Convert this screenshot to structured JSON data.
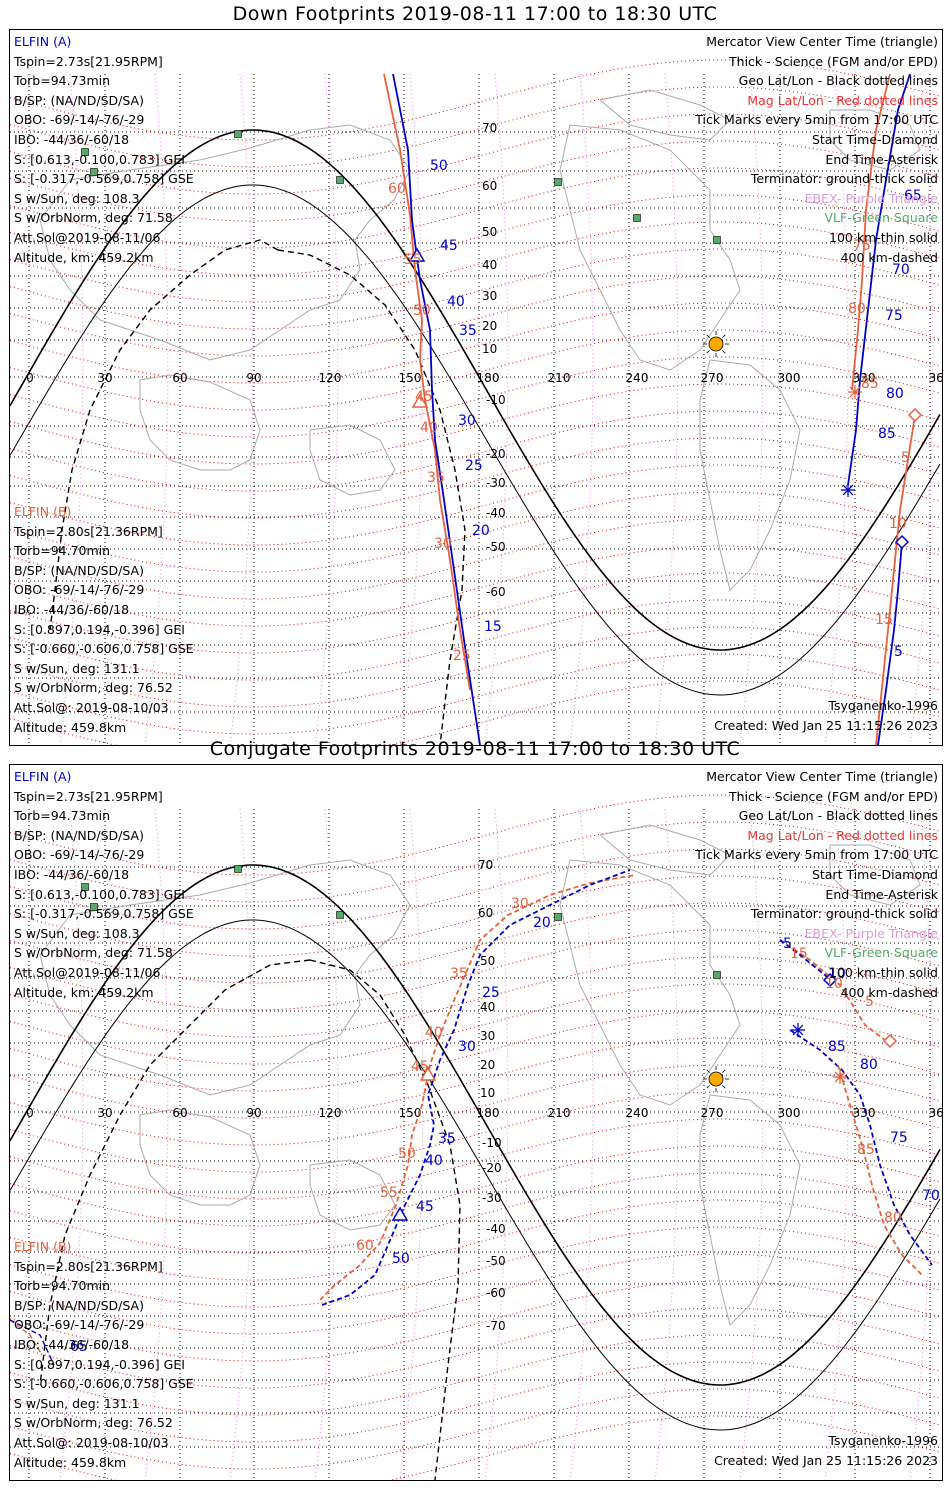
{
  "colors": {
    "elfin_a": "#0000cc",
    "elfin_b": "#e8603c",
    "mag_grid": "#dd0000",
    "ebex": "#dd88dd",
    "vlf": "#55aa66",
    "sun": "#ffaa00"
  },
  "panels": [
    {
      "id": "down",
      "title": "Down Footprints 2019-08-11 17:00 to 18:30 UTC",
      "elfin_a": {
        "name": "ELFIN (A)",
        "lines": [
          "Tspin=2.73s[21.95RPM]",
          "Torb=94.73min",
          "B/SP: (NA/ND/SD/SA)",
          "OBO: -69/-14/-76/-29",
          "IBO: -44/36/-60/18",
          "S: [0.613,-0.100,0.783] GEI",
          "S: [-0.317,-0.569,0.758] GSE",
          "S w/Sun, deg: 108.3",
          "S w/OrbNorm, deg: 71.58",
          "Att.Sol@2019-08-11/06",
          "Altitude, km: 459.2km"
        ]
      },
      "elfin_b": {
        "name": "ELFIN (B)",
        "lines": [
          "Tspin=2.80s[21.36RPM]",
          "Torb=94.70min",
          "B/SP: (NA/ND/SD/SA)",
          "OBO: -69/-14/-76/-29",
          "IBO: -44/36/-60/18",
          "S: [0.897,0.194,-0.396] GEI",
          "S: [-0.660,-0.606,0.758] GSE",
          "S w/Sun, deg: 131.1",
          "S w/OrbNorm, deg: 76.52",
          "Att.Sol@: 2019-08-10/03",
          "Altitude: 459.8km"
        ]
      },
      "legend": [
        "Mercator View Center Time (triangle)",
        "Thick - Science (FGM and/or EPD)",
        "Geo Lat/Lon - Black dotted lines",
        "Mag Lat/Lon - Red dotted lines",
        "Tick Marks every 5min from 17:00 UTC",
        "Start Time-Diamond",
        "End Time-Asterisk",
        "Terminator: ground-thick solid",
        "EBEX- Purple Triangle",
        "VLF-Green Square",
        "100 km-thin solid",
        "400 km-dashed"
      ],
      "model": "Tsyganenko-1996",
      "created": "Created: Wed Jan 25 11:15:26 2023",
      "lon_ticks": [
        "0",
        "30",
        "60",
        "90",
        "120",
        "150",
        "180",
        "210",
        "240",
        "270",
        "300",
        "330",
        "360"
      ],
      "lat_ticks": [
        "70",
        "60",
        "50",
        "40",
        "30",
        "20",
        "10",
        "-10",
        "-20",
        "-30",
        "-40",
        "-50",
        "-60"
      ],
      "track_labels": {
        "a": [
          "50",
          "45",
          "40",
          "35",
          "30",
          "25",
          "20",
          "15",
          "60",
          "65",
          "70",
          "75",
          "80",
          "85",
          "5"
        ],
        "b": [
          "60",
          "55",
          "50",
          "45",
          "40",
          "35",
          "30",
          "25",
          "75",
          "80",
          "85",
          "5",
          "10",
          "15"
        ]
      }
    },
    {
      "id": "conj",
      "title": "Conjugate Footprints 2019-08-11 17:00 to 18:30 UTC",
      "elfin_a": {
        "name": "ELFIN (A)",
        "lines": [
          "Tspin=2.73s[21.95RPM]",
          "Torb=94.73min",
          "B/SP: (NA/ND/SD/SA)",
          "OBO: -69/-14/-76/-29",
          "IBO: -44/36/-60/18",
          "S: [0.613,-0.100,0.783] GEI",
          "S: [-0.317,-0.569,0.758] GSE",
          "S w/Sun, deg: 108.3",
          "S w/OrbNorm, deg: 71.58",
          "Att.Sol@2019-08-11/06",
          "Altitude, km: 459.2km"
        ]
      },
      "elfin_b": {
        "name": "ELFIN (B)",
        "lines": [
          "Tspin=2.80s[21.36RPM]",
          "Torb=94.70min",
          "B/SP: (NA/ND/SD/SA)",
          "OBO: -69/-14/-76/-29",
          "IBO: -44/36/-60/18",
          "S: [0.897,0.194,-0.396] GEI",
          "S: [-0.660,-0.606,0.758] GSE",
          "S w/Sun, deg: 131.1",
          "S w/OrbNorm, deg: 76.52",
          "Att.Sol@: 2019-08-10/03",
          "Altitude: 459.8km"
        ]
      },
      "legend": [
        "Mercator View Center Time (triangle)",
        "Thick - Science (FGM and/or EPD)",
        "Geo Lat/Lon - Black dotted lines",
        "Mag Lat/Lon - Red dotted lines",
        "Tick Marks every 5min from 17:00 UTC",
        "Start Time-Diamond",
        "End Time-Asterisk",
        "Terminator: ground-thick solid",
        "EBEX- Purple Triangle",
        "VLF-Green Square",
        "100 km-thin solid",
        "400 km-dashed"
      ],
      "model": "Tsyganenko-1996",
      "created": "Created: Wed Jan 25 11:15:26 2023",
      "lon_ticks": [
        "0",
        "30",
        "60",
        "90",
        "120",
        "150",
        "180",
        "210",
        "240",
        "270",
        "300",
        "330",
        "360"
      ],
      "lat_ticks": [
        "70",
        "60",
        "50",
        "40",
        "30",
        "20",
        "10",
        "-10",
        "-20",
        "-30",
        "-40",
        "-50",
        "-60",
        "-70"
      ],
      "track_labels": {
        "a": [
          "20",
          "25",
          "30",
          "35",
          "40",
          "45",
          "50",
          "5",
          "10",
          "85",
          "80",
          "75",
          "70",
          "65"
        ],
        "b": [
          "30",
          "35",
          "40",
          "45",
          "50",
          "55",
          "60",
          "15",
          "10",
          "5",
          "85",
          "80"
        ]
      }
    }
  ]
}
